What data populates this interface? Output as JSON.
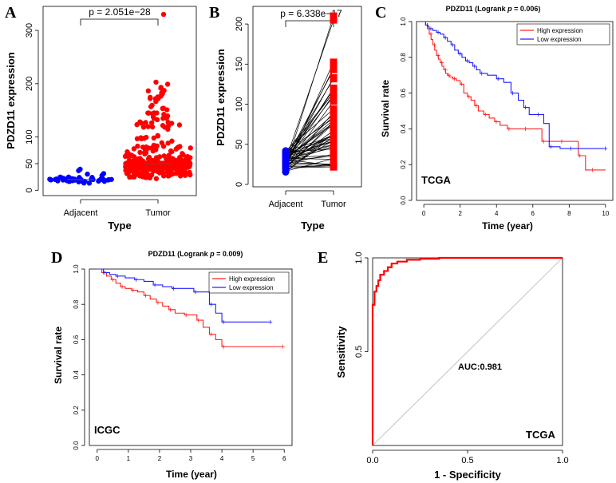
{
  "figure": {
    "panel_labels": [
      "A",
      "B",
      "C",
      "D",
      "E"
    ]
  },
  "chart_data": [
    {
      "panel": "A",
      "type": "scatter",
      "categories": [
        "Adjacent",
        "Tumor"
      ],
      "xlabel": "Type",
      "ylabel": "PDZD11 expression",
      "ylim": [
        -10,
        345
      ],
      "yticks": [
        0,
        50,
        100,
        200,
        300
      ],
      "ytick_labels": [
        "0",
        "50",
        "100",
        "200",
        "300"
      ],
      "annotation": "p = 2.051e−28",
      "series": [
        {
          "name": "Adjacent",
          "color": "#0000ff",
          "median": 20,
          "min": 12,
          "max": 40
        },
        {
          "name": "Tumor",
          "color": "#ff0000",
          "median": 50,
          "min": 20,
          "max": 330
        }
      ]
    },
    {
      "panel": "B",
      "type": "line",
      "categories": [
        "Adjacent",
        "Tumor"
      ],
      "xlabel": "Type",
      "ylabel": "PDZD11 expression",
      "ylim": [
        -3,
        222
      ],
      "yticks": [
        0,
        50,
        100,
        150,
        200
      ],
      "ytick_labels": [
        "0",
        "50",
        "100",
        "150",
        "200"
      ],
      "annotation": "p = 6.338e−17",
      "series": [
        {
          "name": "Adjacent",
          "color": "#0000ff",
          "min": 15,
          "max": 42
        },
        {
          "name": "Tumor",
          "color": "#ff0000",
          "min": 20,
          "max": 210
        }
      ]
    },
    {
      "panel": "C",
      "type": "line",
      "title": "PDZD11 (Logrank p = 0.006)",
      "title_pre": "PDZD11 (Logrank ",
      "title_p": "p",
      "title_post": " = 0.006)",
      "xlabel": "Time (year)",
      "ylabel": "Survival rate",
      "xlim": [
        -0.4,
        10.4
      ],
      "ylim": [
        0,
        1
      ],
      "xticks": [
        0,
        2,
        4,
        6,
        8,
        10
      ],
      "xtick_labels": [
        "0",
        "2",
        "4",
        "6",
        "8",
        "10"
      ],
      "yticks": [
        0,
        0.2,
        0.4,
        0.6,
        0.8,
        1.0
      ],
      "ytick_labels": [
        "0.0",
        "0.2",
        "0.4",
        "0.6",
        "0.8",
        "1.0"
      ],
      "cohort": "TCGA",
      "legend": [
        "High expression",
        "Low expression"
      ],
      "series": [
        {
          "name": "High expression",
          "color": "#ff2020",
          "x": [
            0,
            0.1,
            0.2,
            0.3,
            0.4,
            0.5,
            0.6,
            0.7,
            0.8,
            0.9,
            1.0,
            1.1,
            1.2,
            1.3,
            1.4,
            1.6,
            1.8,
            2.0,
            2.2,
            2.4,
            2.6,
            2.8,
            3.0,
            3.3,
            3.6,
            3.9,
            4.2,
            4.6,
            5.0,
            5.5,
            6.0,
            6.5,
            6.8,
            7.5,
            8.0,
            8.5,
            8.9,
            9.2,
            10
          ],
          "y": [
            1.0,
            0.98,
            0.96,
            0.93,
            0.9,
            0.87,
            0.84,
            0.81,
            0.79,
            0.77,
            0.75,
            0.73,
            0.71,
            0.7,
            0.69,
            0.68,
            0.67,
            0.65,
            0.6,
            0.58,
            0.56,
            0.53,
            0.5,
            0.48,
            0.46,
            0.44,
            0.42,
            0.4,
            0.4,
            0.4,
            0.4,
            0.33,
            0.33,
            0.33,
            0.33,
            0.25,
            0.17,
            0.17,
            0.17
          ]
        },
        {
          "name": "Low expression",
          "color": "#2020ff",
          "x": [
            0,
            0.1,
            0.2,
            0.3,
            0.5,
            0.7,
            0.9,
            1.1,
            1.3,
            1.5,
            1.7,
            1.9,
            2.1,
            2.3,
            2.5,
            2.7,
            2.9,
            3.1,
            3.5,
            4.0,
            4.4,
            4.8,
            5.2,
            5.5,
            5.8,
            6.2,
            6.6,
            6.9,
            7.5,
            8.0,
            9.0,
            9.9
          ],
          "y": [
            1.0,
            0.98,
            0.97,
            0.96,
            0.95,
            0.94,
            0.93,
            0.91,
            0.89,
            0.87,
            0.84,
            0.82,
            0.8,
            0.78,
            0.77,
            0.75,
            0.73,
            0.71,
            0.7,
            0.68,
            0.66,
            0.6,
            0.56,
            0.52,
            0.48,
            0.48,
            0.43,
            0.3,
            0.29,
            0.29,
            0.29,
            0.29
          ]
        }
      ]
    },
    {
      "panel": "D",
      "type": "line",
      "title": "PDZD11 (Logrank p = 0.009)",
      "title_pre": "PDZD11 (Logrank ",
      "title_p": "p",
      "title_post": " = 0.009)",
      "xlabel": "Time (year)",
      "ylabel": "Survival rate",
      "xlim": [
        -0.25,
        6.25
      ],
      "ylim": [
        0,
        1
      ],
      "xticks": [
        0,
        1,
        2,
        3,
        4,
        5,
        6
      ],
      "xtick_labels": [
        "0",
        "1",
        "2",
        "3",
        "4",
        "5",
        "6"
      ],
      "yticks": [
        0,
        0.2,
        0.4,
        0.6,
        0.8,
        1.0
      ],
      "ytick_labels": [
        "0.0",
        "0.2",
        "0.4",
        "0.6",
        "0.8",
        "1.0"
      ],
      "cohort": "ICGC",
      "legend": [
        "High expression",
        "Low expression"
      ],
      "series": [
        {
          "name": "High expression",
          "color": "#ff2020",
          "x": [
            0,
            0.15,
            0.3,
            0.45,
            0.6,
            0.75,
            0.9,
            1.1,
            1.3,
            1.5,
            1.7,
            1.9,
            2.1,
            2.3,
            2.5,
            2.8,
            3.0,
            3.2,
            3.4,
            3.6,
            3.8,
            4.0,
            5.0,
            5.9
          ],
          "y": [
            1.0,
            0.98,
            0.96,
            0.94,
            0.92,
            0.9,
            0.89,
            0.88,
            0.87,
            0.85,
            0.83,
            0.81,
            0.79,
            0.77,
            0.75,
            0.74,
            0.74,
            0.71,
            0.67,
            0.63,
            0.6,
            0.56,
            0.56,
            0.56
          ]
        },
        {
          "name": "Low expression",
          "color": "#2020ff",
          "x": [
            0,
            0.2,
            0.4,
            0.6,
            0.9,
            1.2,
            1.5,
            1.8,
            2.1,
            2.4,
            2.8,
            3.1,
            3.4,
            3.6,
            3.8,
            4.0,
            5.0,
            5.5
          ],
          "y": [
            1.0,
            0.98,
            0.97,
            0.96,
            0.95,
            0.94,
            0.93,
            0.91,
            0.9,
            0.89,
            0.89,
            0.87,
            0.87,
            0.8,
            0.75,
            0.7,
            0.7,
            0.7
          ]
        }
      ]
    },
    {
      "panel": "E",
      "type": "line",
      "xlabel": "1 - Specificity",
      "ylabel": "Sensitivity",
      "xlim": [
        0,
        1
      ],
      "ylim": [
        0,
        1
      ],
      "xticks": [
        0,
        0.5,
        1.0
      ],
      "xtick_labels": [
        "0.0",
        "0.5",
        "1.0"
      ],
      "yticks": [
        0.5,
        1.0
      ],
      "ytick_labels": [
        "0.5",
        "1.0"
      ],
      "annotation": "AUC:0.981",
      "cohort": "TCGA",
      "series": [
        {
          "name": "ROC",
          "color": "#ff0000",
          "x": [
            0,
            0,
            0.01,
            0.01,
            0.02,
            0.02,
            0.03,
            0.03,
            0.04,
            0.04,
            0.06,
            0.06,
            0.08,
            0.08,
            0.1,
            0.1,
            0.13,
            0.13,
            0.18,
            0.18,
            0.25,
            0.25,
            0.35,
            0.35,
            1.0
          ],
          "y": [
            0,
            0.75,
            0.75,
            0.82,
            0.82,
            0.85,
            0.85,
            0.88,
            0.88,
            0.91,
            0.91,
            0.93,
            0.93,
            0.95,
            0.95,
            0.97,
            0.97,
            0.98,
            0.98,
            0.99,
            0.99,
            0.995,
            0.995,
            1.0,
            1.0
          ]
        },
        {
          "name": "reference",
          "color": "#cccccc",
          "x": [
            0,
            1
          ],
          "y": [
            0,
            1
          ]
        }
      ]
    }
  ]
}
